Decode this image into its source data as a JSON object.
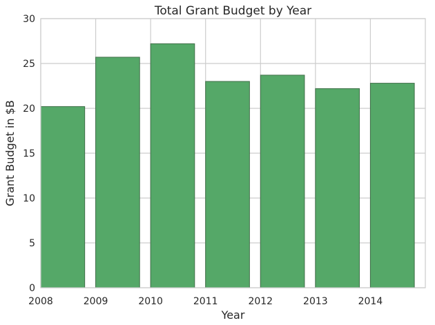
{
  "chart_data": {
    "type": "bar",
    "title": "Total Grant Budget by Year",
    "xlabel": "Year",
    "ylabel": "Grant Budget in $B",
    "categories": [
      "2008",
      "2009",
      "2010",
      "2011",
      "2012",
      "2013",
      "2014"
    ],
    "values": [
      20.2,
      25.7,
      27.2,
      23.0,
      23.7,
      22.2,
      22.8
    ],
    "ylim": [
      0,
      30
    ],
    "yticks": [
      0,
      5,
      10,
      15,
      20,
      25,
      30
    ],
    "xlim": [
      2008,
      2015
    ],
    "grid": true,
    "colors": {
      "bar": "#55a868",
      "bar_edge": "#3f6e48",
      "grid": "#cccccc",
      "frame": "#cccccc"
    }
  }
}
